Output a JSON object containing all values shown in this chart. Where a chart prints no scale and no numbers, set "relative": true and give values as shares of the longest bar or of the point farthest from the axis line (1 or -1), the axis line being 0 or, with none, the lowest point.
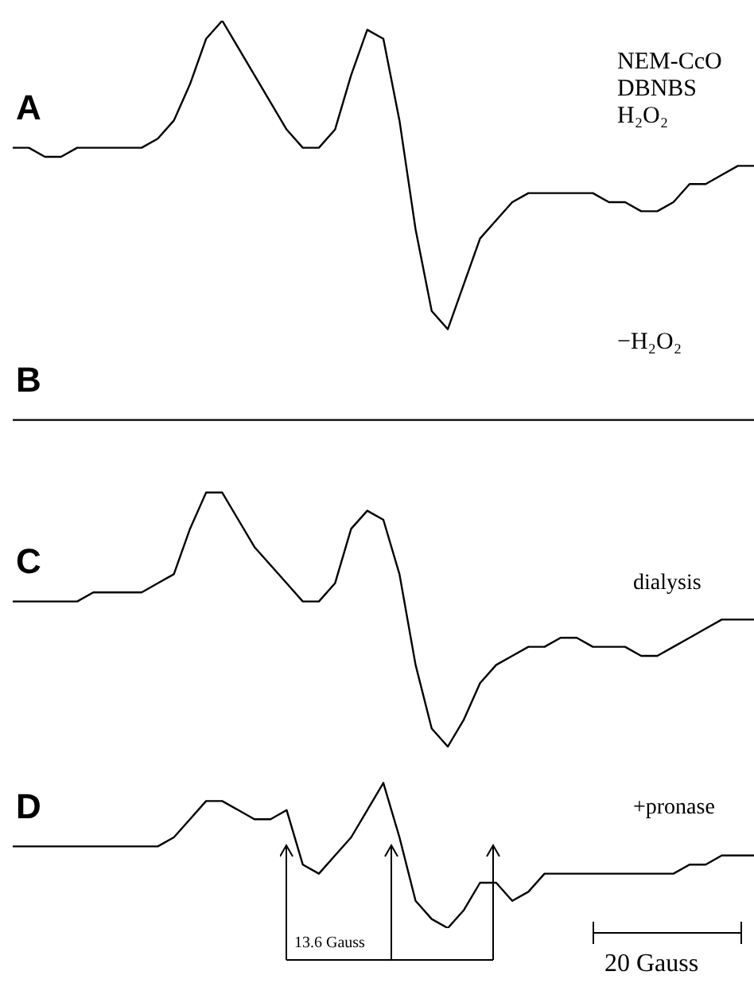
{
  "chart_data": {
    "type": "line",
    "relative": true,
    "categories": [
      null,
      null,
      null,
      null,
      null,
      null,
      null,
      null,
      null,
      null,
      null,
      null,
      null,
      null,
      null,
      null,
      null,
      null,
      null,
      null,
      null,
      null,
      null,
      null,
      null,
      null,
      null,
      null,
      null,
      null,
      null,
      null,
      null,
      null,
      null,
      null,
      null,
      null,
      null,
      null,
      null,
      null,
      null,
      null,
      null,
      null,
      null
    ],
    "series": [
      {
        "name": "A",
        "color": "#000000",
        "values": [
          0.86,
          0.86,
          0.85,
          0.85,
          0.86,
          0.86,
          0.86,
          0.86,
          0.86,
          0.87,
          0.89,
          0.93,
          0.98,
          1.0,
          0.97,
          0.94,
          0.91,
          0.88,
          0.86,
          0.86,
          0.88,
          0.94,
          0.99,
          0.98,
          0.89,
          0.77,
          0.68,
          0.66,
          0.71,
          0.76,
          0.78,
          0.8,
          0.81,
          0.81,
          0.81,
          0.81,
          0.81,
          0.8,
          0.8,
          0.79,
          0.79,
          0.8,
          0.82,
          0.82,
          0.83,
          0.84,
          0.84
        ]
      },
      {
        "name": "B",
        "color": "#000000",
        "values": [
          0.56,
          0.56,
          0.56,
          0.56,
          0.56,
          0.56,
          0.56,
          0.56,
          0.56,
          0.56,
          0.56,
          0.56,
          0.56,
          0.56,
          0.56,
          0.56,
          0.56,
          0.56,
          0.56,
          0.56,
          0.56,
          0.56,
          0.56,
          0.56,
          0.56,
          0.56,
          0.56,
          0.56,
          0.56,
          0.56,
          0.56,
          0.56,
          0.56,
          0.56,
          0.56,
          0.56,
          0.56,
          0.56,
          0.56,
          0.56,
          0.56,
          0.56,
          0.56,
          0.56,
          0.56,
          0.56,
          0.56
        ]
      },
      {
        "name": "C",
        "color": "#000000",
        "values": [
          0.36,
          0.36,
          0.36,
          0.36,
          0.36,
          0.37,
          0.37,
          0.37,
          0.37,
          0.38,
          0.39,
          0.44,
          0.48,
          0.48,
          0.45,
          0.42,
          0.4,
          0.38,
          0.36,
          0.36,
          0.38,
          0.44,
          0.46,
          0.45,
          0.39,
          0.29,
          0.22,
          0.2,
          0.23,
          0.27,
          0.29,
          0.3,
          0.31,
          0.31,
          0.32,
          0.32,
          0.31,
          0.31,
          0.31,
          0.3,
          0.3,
          0.31,
          0.32,
          0.33,
          0.34,
          0.34,
          0.34
        ]
      },
      {
        "name": "D",
        "color": "#000000",
        "values": [
          0.09,
          0.09,
          0.09,
          0.09,
          0.09,
          0.09,
          0.09,
          0.09,
          0.09,
          0.09,
          0.1,
          0.12,
          0.14,
          0.14,
          0.13,
          0.12,
          0.12,
          0.13,
          0.07,
          0.06,
          0.08,
          0.1,
          0.13,
          0.16,
          0.1,
          0.03,
          0.01,
          0,
          0.02,
          0.05,
          0.05,
          0.03,
          0.04,
          0.06,
          0.06,
          0.06,
          0.06,
          0.06,
          0.06,
          0.06,
          0.06,
          0.06,
          0.07,
          0.07,
          0.08,
          0.08,
          0.08
        ]
      }
    ],
    "annotations": [
      "NEM-CcO",
      "DBNBS",
      "H₂O₂",
      "−H₂O₂",
      "dialysis",
      "+pronase",
      "13.6 Gauss",
      "20 Gauss"
    ]
  }
}
